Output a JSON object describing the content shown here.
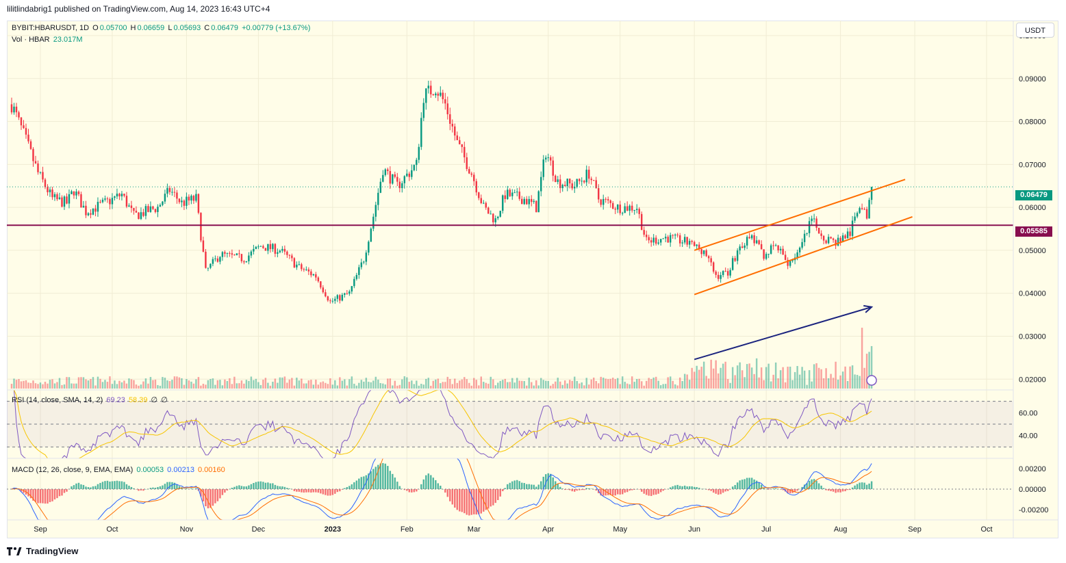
{
  "header": {
    "author": "lilitlindabrig1",
    "published_on": "published on TradingView.com, Aug 14, 2023 16:43 UTC+4"
  },
  "symbol_line": {
    "symbol": "BYBIT:HBARUSDT, 1D",
    "open_label": "O",
    "open": "0.05700",
    "high_label": "H",
    "high": "0.06659",
    "low_label": "L",
    "low": "0.05693",
    "close_label": "C",
    "close": "0.06479",
    "change": "+0.00779 (+13.67%)"
  },
  "volume_line": {
    "label": "Vol · HBAR",
    "value": "23.017M"
  },
  "currency_button": "USDT",
  "rsi_legend": {
    "label": "RSI (14, close, SMA, 14, 2)",
    "rsi": "69.23",
    "sma": "58.39",
    "extra1": "∅",
    "extra2": "∅"
  },
  "macd_legend": {
    "label": "MACD (12, 26, close, 9, EMA, EMA)",
    "hist": "0.00053",
    "macd": "0.00213",
    "signal": "0.00160"
  },
  "footer": {
    "brand": "TradingView"
  },
  "price_tags": {
    "last": "0.06479",
    "support": "0.05585"
  },
  "colors": {
    "up": "#089981",
    "down": "#f23645",
    "support_line": "#880e4f",
    "channel": "#ff6d00",
    "arrow": "#1a237e",
    "rsi_line": "#7e57c2",
    "rsi_sma": "#f7c500",
    "macd_line": "#2962ff",
    "signal_line": "#ff6d00",
    "background": "#fffde8"
  },
  "chart_data": {
    "type": "candlestick",
    "symbol": "BYBIT:HBARUSDT",
    "interval": "1D",
    "y_axis": {
      "ticks": [
        "0.10000",
        "0.09000",
        "0.08000",
        "0.07000",
        "0.06000",
        "0.05000",
        "0.04000",
        "0.03000",
        "0.02000"
      ],
      "ylim": [
        0.0175,
        0.1035
      ]
    },
    "x_axis": {
      "ticks": [
        "Sep",
        "Oct",
        "Nov",
        "Dec",
        "2023",
        "Feb",
        "Mar",
        "Apr",
        "May",
        "Jun",
        "Jul",
        "Aug",
        "Sep",
        "Oct"
      ]
    },
    "close_path": [
      [
        "2022-08-20",
        0.084
      ],
      [
        "2022-08-25",
        0.077
      ],
      [
        "2022-08-31",
        0.068
      ],
      [
        "2022-09-06",
        0.062
      ],
      [
        "2022-09-12",
        0.061
      ],
      [
        "2022-09-15",
        0.064
      ],
      [
        "2022-09-20",
        0.059
      ],
      [
        "2022-09-28",
        0.061
      ],
      [
        "2022-10-05",
        0.063
      ],
      [
        "2022-10-10",
        0.058
      ],
      [
        "2022-10-20",
        0.06
      ],
      [
        "2022-10-25",
        0.064
      ],
      [
        "2022-10-30",
        0.061
      ],
      [
        "2022-11-05",
        0.062
      ],
      [
        "2022-11-09",
        0.045
      ],
      [
        "2022-11-15",
        0.049
      ],
      [
        "2022-11-25",
        0.048
      ],
      [
        "2022-12-02",
        0.051
      ],
      [
        "2022-12-10",
        0.05
      ],
      [
        "2022-12-18",
        0.046
      ],
      [
        "2022-12-25",
        0.044
      ],
      [
        "2022-12-31",
        0.038
      ],
      [
        "2023-01-08",
        0.04
      ],
      [
        "2023-01-14",
        0.048
      ],
      [
        "2023-01-18",
        0.058
      ],
      [
        "2023-01-22",
        0.069
      ],
      [
        "2023-01-28",
        0.065
      ],
      [
        "2023-02-05",
        0.07
      ],
      [
        "2023-02-08",
        0.086
      ],
      [
        "2023-02-13",
        0.088
      ],
      [
        "2023-02-17",
        0.084
      ],
      [
        "2023-02-22",
        0.075
      ],
      [
        "2023-02-28",
        0.068
      ],
      [
        "2023-03-05",
        0.06
      ],
      [
        "2023-03-10",
        0.057
      ],
      [
        "2023-03-14",
        0.063
      ],
      [
        "2023-03-22",
        0.062
      ],
      [
        "2023-03-27",
        0.06
      ],
      [
        "2023-03-31",
        0.073
      ],
      [
        "2023-04-05",
        0.066
      ],
      [
        "2023-04-12",
        0.065
      ],
      [
        "2023-04-18",
        0.068
      ],
      [
        "2023-04-22",
        0.062
      ],
      [
        "2023-04-30",
        0.06
      ],
      [
        "2023-05-08",
        0.06
      ],
      [
        "2023-05-12",
        0.052
      ],
      [
        "2023-05-20",
        0.053
      ],
      [
        "2023-05-28",
        0.052
      ],
      [
        "2023-06-05",
        0.05
      ],
      [
        "2023-06-10",
        0.044
      ],
      [
        "2023-06-15",
        0.045
      ],
      [
        "2023-06-20",
        0.051
      ],
      [
        "2023-06-25",
        0.053
      ],
      [
        "2023-06-30",
        0.049
      ],
      [
        "2023-07-05",
        0.051
      ],
      [
        "2023-07-10",
        0.047
      ],
      [
        "2023-07-15",
        0.05
      ],
      [
        "2023-07-20",
        0.057
      ],
      [
        "2023-07-25",
        0.053
      ],
      [
        "2023-07-30",
        0.052
      ],
      [
        "2023-08-05",
        0.054
      ],
      [
        "2023-08-09",
        0.061
      ],
      [
        "2023-08-12",
        0.057
      ],
      [
        "2023-08-14",
        0.0648
      ]
    ],
    "horizontal_line": {
      "price": 0.05585,
      "color": "#880e4f"
    },
    "last_price": 0.06479,
    "channel": {
      "upper": [
        [
          "2023-06-01",
          0.05
        ],
        [
          "2023-08-28",
          0.0665
        ]
      ],
      "lower": [
        [
          "2023-06-01",
          0.0397
        ],
        [
          "2023-08-31",
          0.0578
        ]
      ]
    },
    "arrow": {
      "from": [
        "2023-06-01",
        0.0246
      ],
      "to": [
        "2023-08-14",
        0.0368
      ]
    },
    "volume_label": "Vol · HBAR 23.017M",
    "rsi": {
      "ticks": [
        "60.00",
        "40.00"
      ],
      "last": 69.23,
      "sma_last": 58.39,
      "upper_band": 70,
      "lower_band": 30,
      "middle": 50
    },
    "macd": {
      "ticks": [
        "0.00200",
        "0.00000",
        "-0.00200"
      ],
      "hist_last": 0.00053,
      "macd_last": 0.00213,
      "signal_last": 0.0016
    }
  }
}
